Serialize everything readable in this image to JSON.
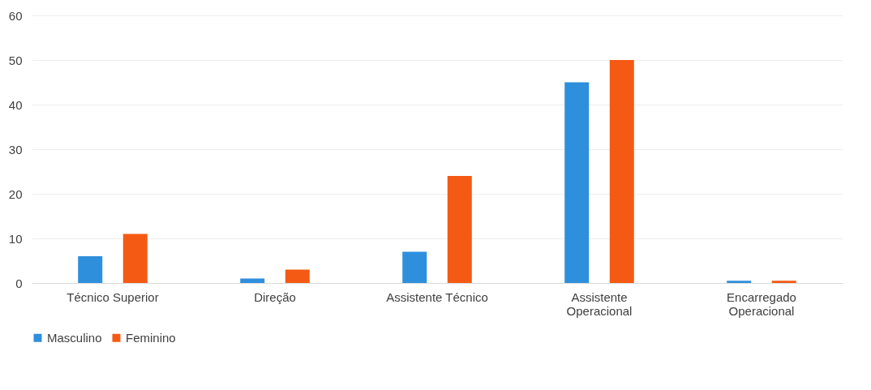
{
  "chart_data": {
    "type": "bar",
    "categories": [
      "Técnico Superior",
      "Direção",
      "Assistente Técnico",
      "Assistente Operacional",
      "Encarregado Operacional"
    ],
    "series": [
      {
        "name": "Masculino",
        "color": "#2e8fdc",
        "values": [
          6,
          1,
          7,
          45,
          0.5
        ]
      },
      {
        "name": "Feminino",
        "color": "#f55a14",
        "values": [
          11,
          3,
          24,
          50,
          0.5
        ]
      }
    ],
    "ylim": [
      0,
      60
    ],
    "yticks": [
      0,
      10,
      20,
      30,
      40,
      50,
      60
    ],
    "grid": "y",
    "legend": "bottom"
  }
}
